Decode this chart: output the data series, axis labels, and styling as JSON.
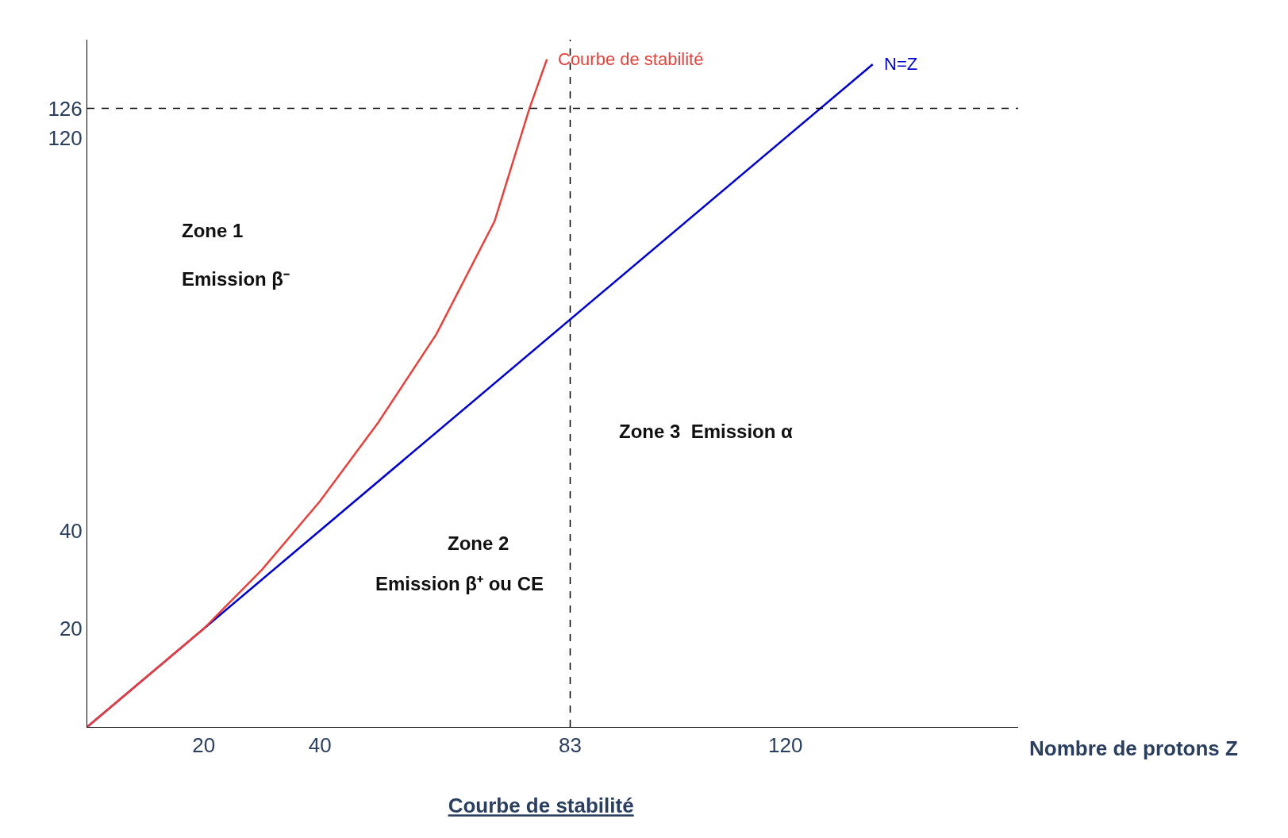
{
  "chart_data": {
    "type": "line",
    "title": "Courbe de stabilité",
    "xlabel": "Nombre de protons Z",
    "xlim": [
      0,
      160
    ],
    "ylim": [
      0,
      140
    ],
    "xticks": [
      20,
      40,
      83,
      120
    ],
    "yticks": [
      20,
      40,
      120,
      126
    ],
    "legend": false,
    "marker": "none",
    "series": [
      {
        "name": "Courbe de stabilité",
        "color": "#e8403a",
        "x": [
          0,
          20,
          30,
          40,
          50,
          60,
          70,
          76,
          79
        ],
        "values": [
          0,
          20,
          32,
          46,
          62,
          80,
          103,
          126,
          136
        ]
      },
      {
        "name": "N=Z",
        "color": "#0000cc",
        "x": [
          0,
          135
        ],
        "values": [
          0,
          135
        ]
      }
    ],
    "ref_lines": [
      {
        "axis": "x",
        "value": 83,
        "color": "#000000",
        "line_style": "dashed"
      },
      {
        "axis": "y",
        "value": 126,
        "color": "#000000",
        "line_style": "dashed"
      }
    ],
    "annotations": [
      "Zone 1",
      "Emission β⁻",
      "Zone 2",
      "Emission β⁺ ou CE",
      "Zone 3  Emission α"
    ]
  }
}
